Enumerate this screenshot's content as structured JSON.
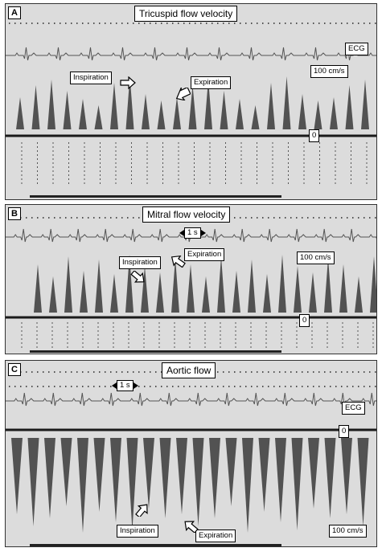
{
  "panels": {
    "a": {
      "label": "A",
      "title": "Tricuspid flow velocity",
      "ecg": "ECG",
      "scale": "100 cm/s",
      "zero": "0",
      "inspiration": "Inspiration",
      "expiration": "Expiration"
    },
    "b": {
      "label": "B",
      "title": "Mitral flow velocity",
      "time_scale": "1 s",
      "scale": "100 cm/s",
      "zero": "0",
      "inspiration": "Inspiration",
      "expiration": "Expiration"
    },
    "c": {
      "label": "C",
      "title": "Aortic flow",
      "time_scale": "1 s",
      "ecg": "ECG",
      "scale": "100 cm/s",
      "zero": "0",
      "inspiration": "Inspiration",
      "expiration": "Expiration"
    }
  },
  "colors": {
    "background": "#dcdcdc",
    "trace": "#3a3a3a",
    "ecg": "#555555"
  },
  "icons": [
    "white-arrow-icon",
    "scale-left-arrow-icon",
    "scale-right-arrow-icon"
  ]
}
